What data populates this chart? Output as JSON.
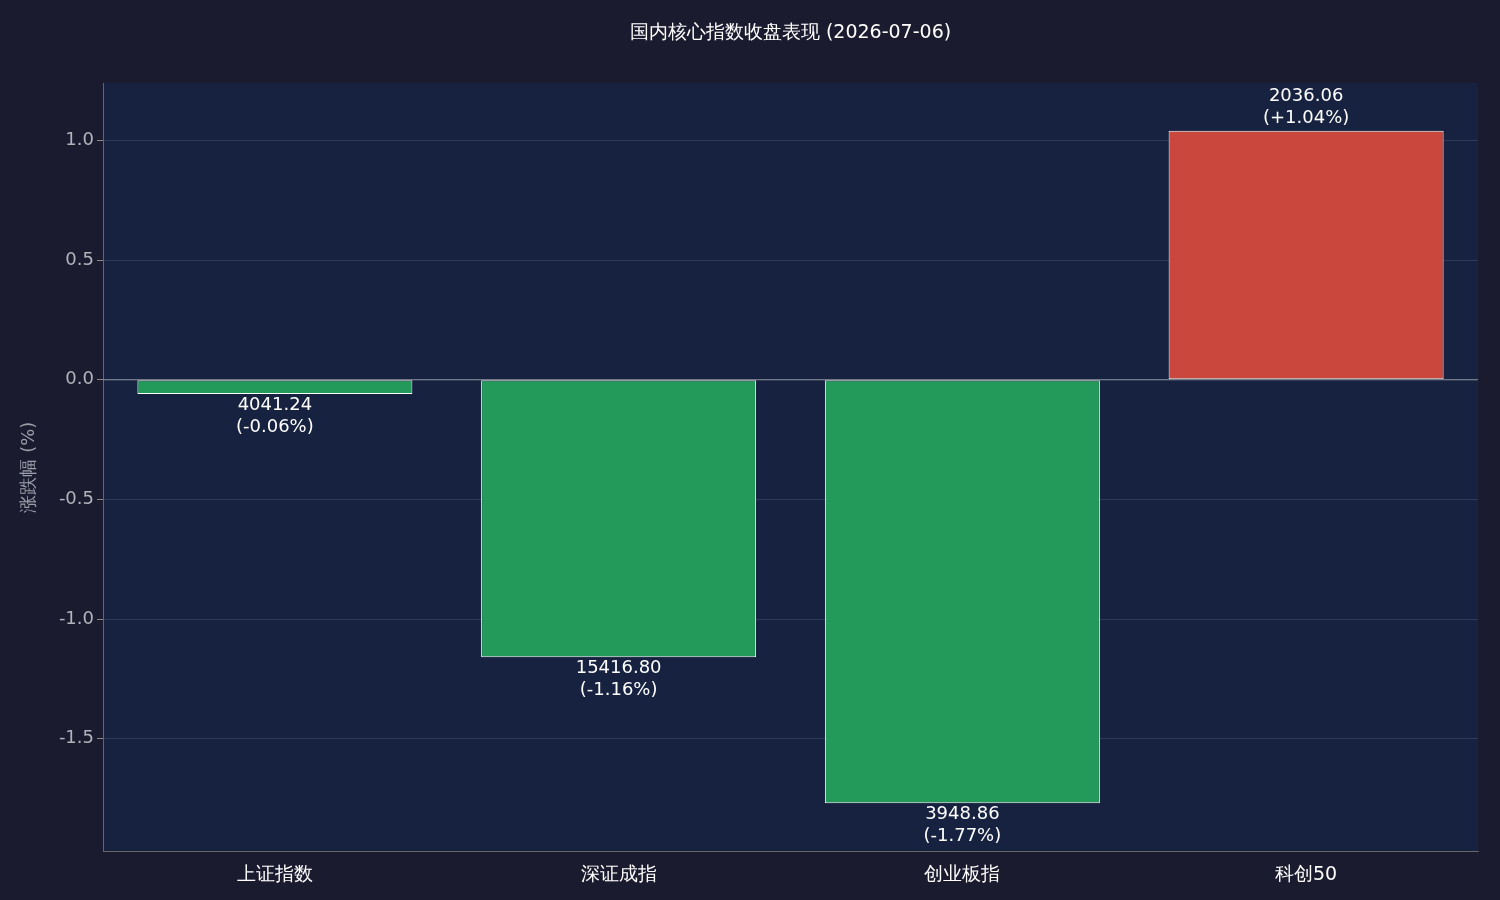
{
  "chart_data": {
    "type": "bar",
    "title": "国内核心指数收盘表现 (2026-07-06)",
    "ylabel": "涨跌幅 (%)",
    "categories": [
      "上证指数",
      "深证成指",
      "创业板指",
      "科创50"
    ],
    "values": [
      -0.06,
      -1.16,
      -1.77,
      1.04
    ],
    "colors": [
      "#249a5a",
      "#249a5a",
      "#249a5a",
      "#c9473d"
    ],
    "value_labels": [
      "4041.24\n(-0.06%)",
      "15416.80\n(-1.16%)",
      "3948.86\n(-1.77%)",
      "2036.06\n(+1.04%)"
    ],
    "ylim": [
      -1.97,
      1.24
    ],
    "yticks": [
      {
        "value": -1.5,
        "label": "-1.5"
      },
      {
        "value": -1,
        "label": "-1.0"
      },
      {
        "value": -0.5,
        "label": "-0.5"
      },
      {
        "value": 0,
        "label": "0.0"
      },
      {
        "value": 0.5,
        "label": "0.5"
      },
      {
        "value": 1,
        "label": "1.0"
      }
    ],
    "grid": "y",
    "ref_lines": [
      {
        "axis": "y",
        "value": 0,
        "color": "#8a9099"
      }
    ]
  }
}
